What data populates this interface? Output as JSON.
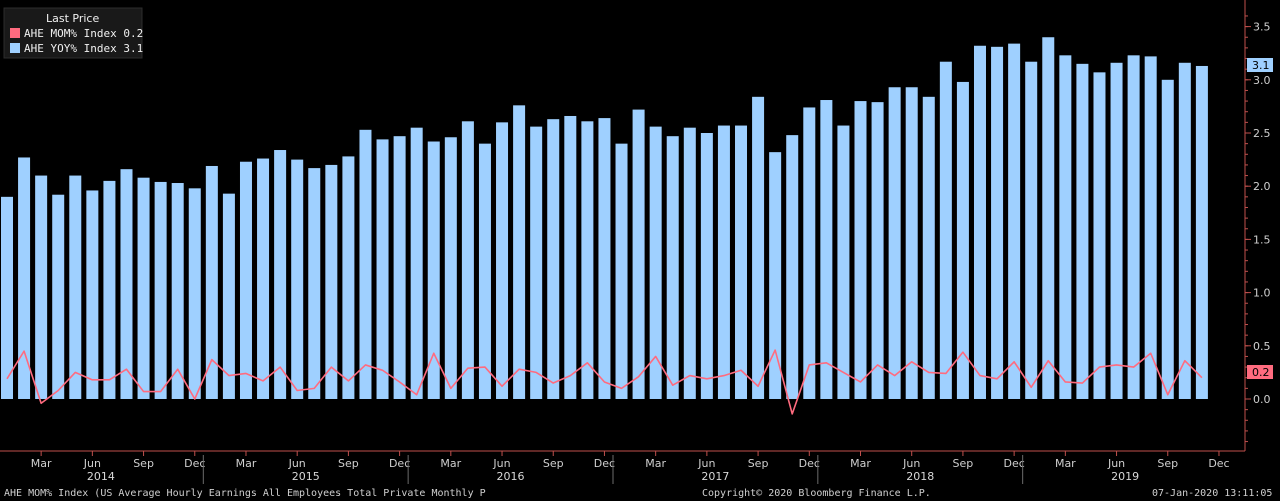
{
  "chart_data": {
    "type": "bar",
    "legend": {
      "title": "Last Price",
      "position": "top-left",
      "items": [
        {
          "text": "AHE MOM% Index 0.2",
          "color": "#ff6b7f"
        },
        {
          "text": "AHE YOY% Index  3.1",
          "color": "#9fd0ff"
        }
      ]
    },
    "series": [
      {
        "name": "AHE YOY% Index",
        "kind": "bar",
        "color": "#9fd0ff",
        "values": [
          1.9,
          2.27,
          2.1,
          1.92,
          2.1,
          1.96,
          2.05,
          2.16,
          2.08,
          2.04,
          2.03,
          1.98,
          2.19,
          1.93,
          2.23,
          2.26,
          2.34,
          2.25,
          2.17,
          2.2,
          2.28,
          2.53,
          2.44,
          2.47,
          2.55,
          2.42,
          2.46,
          2.61,
          2.4,
          2.6,
          2.76,
          2.56,
          2.63,
          2.66,
          2.61,
          2.64,
          2.4,
          2.72,
          2.56,
          2.47,
          2.55,
          2.5,
          2.57,
          2.57,
          2.84,
          2.32,
          2.48,
          2.74,
          2.81,
          2.57,
          2.8,
          2.79,
          2.93,
          2.93,
          2.84,
          3.17,
          2.98,
          3.32,
          3.31,
          3.34,
          3.17,
          3.4,
          3.23,
          3.15,
          3.07,
          3.16,
          3.23,
          3.22,
          3.0,
          3.16,
          3.13
        ]
      },
      {
        "name": "AHE MOM% Index",
        "kind": "line",
        "color": "#ff6b7f",
        "values": [
          0.19,
          0.45,
          -0.04,
          0.08,
          0.25,
          0.18,
          0.18,
          0.28,
          0.07,
          0.07,
          0.28,
          0.0,
          0.37,
          0.22,
          0.24,
          0.17,
          0.3,
          0.08,
          0.1,
          0.3,
          0.17,
          0.32,
          0.27,
          0.16,
          0.04,
          0.43,
          0.1,
          0.29,
          0.3,
          0.12,
          0.28,
          0.25,
          0.15,
          0.22,
          0.34,
          0.16,
          0.1,
          0.21,
          0.4,
          0.13,
          0.22,
          0.19,
          0.22,
          0.27,
          0.12,
          0.46,
          -0.14,
          0.32,
          0.34,
          0.25,
          0.16,
          0.32,
          0.22,
          0.35,
          0.25,
          0.24,
          0.44,
          0.22,
          0.19,
          0.35,
          0.11,
          0.36,
          0.16,
          0.15,
          0.3,
          0.32,
          0.3,
          0.43,
          0.04,
          0.36,
          0.2
        ]
      }
    ],
    "x_ticks": [
      "Mar",
      "Jun",
      "Sep",
      "Dec",
      "Mar",
      "Jun",
      "Sep",
      "Dec",
      "Mar",
      "Jun",
      "Sep",
      "Dec",
      "Mar",
      "Jun",
      "Sep",
      "Dec",
      "Mar",
      "Jun",
      "Sep",
      "Dec",
      "Mar",
      "Jun",
      "Sep",
      "Dec"
    ],
    "years": [
      "2014",
      "2015",
      "2016",
      "2017",
      "2018",
      "2019"
    ],
    "y_ticks": [
      "0.0",
      "0.5",
      "1.0",
      "1.5",
      "2.0",
      "2.5",
      "3.0",
      "3.5"
    ],
    "ylim": [
      -0.5,
      3.7
    ],
    "last_values": {
      "yoy": "3.1",
      "mom": "0.2"
    },
    "grid": false
  },
  "footer": {
    "left": "AHE MOM% Index (US Average Hourly Earnings All Employees Total Private Monthly P",
    "center": "Copyright© 2020 Bloomberg Finance L.P.",
    "right": "07-Jan-2020 13:11:05"
  }
}
